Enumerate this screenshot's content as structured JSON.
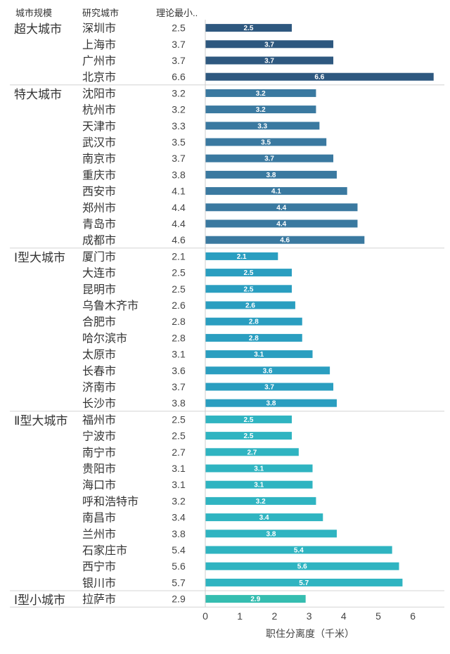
{
  "headers": {
    "group": "城市规模",
    "city": "研究城市",
    "value": "理论最小.."
  },
  "colors": {
    "超大城市": "#2e587f",
    "特大城市": "#3a79a0",
    "Ⅰ型大城市": "#2a9ec0",
    "Ⅱ型大城市": "#2fb4c1",
    "Ⅰ型小城市": "#35bdb0"
  },
  "chart_data": {
    "type": "bar",
    "orientation": "horizontal",
    "xlabel": "职住分离度（千米）",
    "xlim": [
      0,
      6.6
    ],
    "xticks": [
      0,
      1,
      2,
      3,
      4,
      5,
      6
    ],
    "groups": [
      {
        "name": "超大城市",
        "cities": [
          "深圳市",
          "上海市",
          "广州市",
          "北京市"
        ],
        "values": [
          2.5,
          3.7,
          3.7,
          6.6
        ]
      },
      {
        "name": "特大城市",
        "cities": [
          "沈阳市",
          "杭州市",
          "天津市",
          "武汉市",
          "南京市",
          "重庆市",
          "西安市",
          "郑州市",
          "青岛市",
          "成都市"
        ],
        "values": [
          3.2,
          3.2,
          3.3,
          3.5,
          3.7,
          3.8,
          4.1,
          4.4,
          4.4,
          4.6
        ]
      },
      {
        "name": "Ⅰ型大城市",
        "cities": [
          "厦门市",
          "大连市",
          "昆明市",
          "乌鲁木齐市",
          "合肥市",
          "哈尔滨市",
          "太原市",
          "长春市",
          "济南市",
          "长沙市"
        ],
        "values": [
          2.1,
          2.5,
          2.5,
          2.6,
          2.8,
          2.8,
          3.1,
          3.6,
          3.7,
          3.8
        ]
      },
      {
        "name": "Ⅱ型大城市",
        "cities": [
          "福州市",
          "宁波市",
          "南宁市",
          "贵阳市",
          "海口市",
          "呼和浩特市",
          "南昌市",
          "兰州市",
          "石家庄市",
          "西宁市",
          "银川市"
        ],
        "values": [
          2.5,
          2.5,
          2.7,
          3.1,
          3.1,
          3.2,
          3.4,
          3.8,
          5.4,
          5.6,
          5.7
        ]
      },
      {
        "name": "Ⅰ型小城市",
        "cities": [
          "拉萨市"
        ],
        "values": [
          2.9
        ]
      }
    ]
  }
}
